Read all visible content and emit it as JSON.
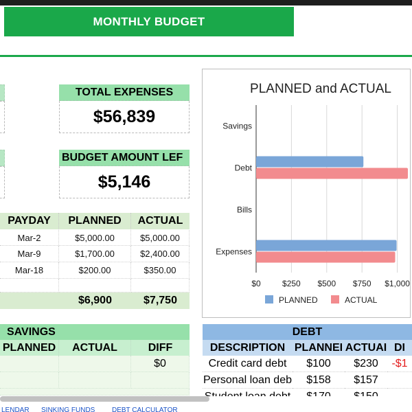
{
  "title": "MONTHLY BUDGET",
  "total_expenses": {
    "label": "TOTAL EXPENSES",
    "value": "$56,839"
  },
  "budget_left": {
    "label": "BUDGET AMOUNT LEF",
    "value": "$5,146"
  },
  "income_table": {
    "headers": [
      "PAYDAY",
      "PLANNED",
      "ACTUAL"
    ],
    "rows": [
      [
        "Mar-2",
        "$5,000.00",
        "$5,000.00"
      ],
      [
        "Mar-9",
        "$1,700.00",
        "$2,400.00"
      ],
      [
        "Mar-18",
        "$200.00",
        "$350.00"
      ]
    ],
    "totals": {
      "planned": "$6,900",
      "actual": "$7,750"
    }
  },
  "chart_data": {
    "type": "bar",
    "orientation": "horizontal",
    "title": "PLANNED and ACTUAL",
    "categories": [
      "Savings",
      "Debt",
      "Bills",
      "Expenses"
    ],
    "series": [
      {
        "name": "PLANNED",
        "color": "#7aa6d8",
        "values": [
          0,
          760,
          0,
          995
        ]
      },
      {
        "name": "ACTUAL",
        "color": "#f28b8e",
        "values": [
          0,
          1075,
          0,
          985
        ]
      }
    ],
    "x_ticks": [
      "$0",
      "$250",
      "$500",
      "$750",
      "$1,000"
    ],
    "xlim": [
      0,
      1075
    ],
    "grid": true,
    "legend_position": "bottom"
  },
  "savings": {
    "title": "SAVINGS",
    "headers": [
      "PLANNED",
      "ACTUAL",
      "DIFF"
    ],
    "rows": [
      [
        "",
        "",
        "$0"
      ]
    ]
  },
  "debt": {
    "title": "DEBT",
    "headers": [
      "DESCRIPTION",
      "PLANNEI",
      "ACTUAI",
      "DI"
    ],
    "rows": [
      [
        "Credit card debt",
        "$100",
        "$230",
        "-$1"
      ],
      [
        "Personal loan deb",
        "$158",
        "$157",
        ""
      ],
      [
        "Student loan debt",
        "$170",
        "$150",
        ""
      ]
    ]
  },
  "tabs": [
    "LENDAR",
    "SINKING FUNDS",
    "DEBT CALCULATOR"
  ]
}
